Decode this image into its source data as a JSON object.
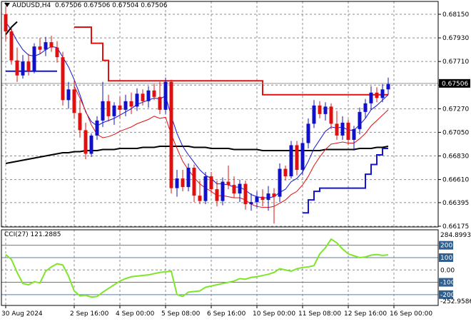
{
  "header": {
    "symbol": "AUDUSD,H4",
    "quote": "0.67506 0.67506 0.67504 0.67506"
  },
  "cci_header": {
    "label": "CCI(27) 121.2885"
  },
  "colors": {
    "bull": "#1010c8",
    "bear": "#e01010",
    "red_line": "#e01010",
    "blue_line": "#1414d8",
    "black_ma": "#000000",
    "cci": "#7fe52a",
    "grid": "#8c8c8c",
    "current_label_bg": "#000000"
  },
  "chart_data": [
    {
      "type": "candlestick",
      "name": "price",
      "y_ticks": [
        "0.68150",
        "0.67930",
        "0.67710",
        "0.67490",
        "0.67270",
        "0.67050",
        "0.66830",
        "0.66610",
        "0.66395",
        "0.66175"
      ],
      "ylim": [
        0.66175,
        0.6823
      ],
      "current_price": "0.67506",
      "x_ticks": [
        {
          "label": "30 Aug 2024",
          "index": 0
        },
        {
          "label": "2 Sep 16:00",
          "index": 12
        },
        {
          "label": "4 Sep 00:00",
          "index": 20
        },
        {
          "label": "5 Sep 08:00",
          "index": 28
        },
        {
          "label": "6 Sep 16:00",
          "index": 36
        },
        {
          "label": "10 Sep 00:00",
          "index": 44
        },
        {
          "label": "11 Sep 08:00",
          "index": 52
        },
        {
          "label": "12 Sep 16:00",
          "index": 60
        },
        {
          "label": "16 Sep 00:00",
          "index": 68
        }
      ],
      "candles": [
        {
          "o": 0.6815,
          "h": 0.6822,
          "l": 0.679,
          "c": 0.6799
        },
        {
          "o": 0.6799,
          "h": 0.6802,
          "l": 0.6768,
          "c": 0.6772
        },
        {
          "o": 0.6772,
          "h": 0.6784,
          "l": 0.6752,
          "c": 0.6758
        },
        {
          "o": 0.6758,
          "h": 0.6777,
          "l": 0.6755,
          "c": 0.6771
        },
        {
          "o": 0.6771,
          "h": 0.6778,
          "l": 0.6758,
          "c": 0.6762
        },
        {
          "o": 0.6762,
          "h": 0.6788,
          "l": 0.676,
          "c": 0.6785
        },
        {
          "o": 0.6785,
          "h": 0.6793,
          "l": 0.6778,
          "c": 0.6782
        },
        {
          "o": 0.6782,
          "h": 0.6794,
          "l": 0.6776,
          "c": 0.6789
        },
        {
          "o": 0.6789,
          "h": 0.6795,
          "l": 0.678,
          "c": 0.6784
        },
        {
          "o": 0.6784,
          "h": 0.679,
          "l": 0.677,
          "c": 0.6775
        },
        {
          "o": 0.6775,
          "h": 0.678,
          "l": 0.673,
          "c": 0.6735
        },
        {
          "o": 0.6735,
          "h": 0.6752,
          "l": 0.6727,
          "c": 0.6745
        },
        {
          "o": 0.6745,
          "h": 0.6754,
          "l": 0.6718,
          "c": 0.6723
        },
        {
          "o": 0.6723,
          "h": 0.6735,
          "l": 0.67,
          "c": 0.6707
        },
        {
          "o": 0.6707,
          "h": 0.6714,
          "l": 0.668,
          "c": 0.6685
        },
        {
          "o": 0.6685,
          "h": 0.6704,
          "l": 0.6682,
          "c": 0.6702
        },
        {
          "o": 0.6702,
          "h": 0.672,
          "l": 0.6698,
          "c": 0.6716
        },
        {
          "o": 0.6716,
          "h": 0.6752,
          "l": 0.671,
          "c": 0.6734
        },
        {
          "o": 0.6734,
          "h": 0.674,
          "l": 0.6715,
          "c": 0.672
        },
        {
          "o": 0.672,
          "h": 0.6733,
          "l": 0.6712,
          "c": 0.673
        },
        {
          "o": 0.673,
          "h": 0.6738,
          "l": 0.6718,
          "c": 0.6726
        },
        {
          "o": 0.6726,
          "h": 0.674,
          "l": 0.672,
          "c": 0.6734
        },
        {
          "o": 0.6734,
          "h": 0.6742,
          "l": 0.6722,
          "c": 0.6729
        },
        {
          "o": 0.6729,
          "h": 0.6746,
          "l": 0.6725,
          "c": 0.6741
        },
        {
          "o": 0.6741,
          "h": 0.6745,
          "l": 0.673,
          "c": 0.6734
        },
        {
          "o": 0.6734,
          "h": 0.6748,
          "l": 0.6728,
          "c": 0.6744
        },
        {
          "o": 0.6744,
          "h": 0.675,
          "l": 0.6735,
          "c": 0.6738
        },
        {
          "o": 0.6738,
          "h": 0.6752,
          "l": 0.6722,
          "c": 0.6726
        },
        {
          "o": 0.6726,
          "h": 0.6756,
          "l": 0.6722,
          "c": 0.6752
        },
        {
          "o": 0.6752,
          "h": 0.6754,
          "l": 0.6648,
          "c": 0.6653
        },
        {
          "o": 0.6653,
          "h": 0.667,
          "l": 0.6645,
          "c": 0.6662
        },
        {
          "o": 0.6662,
          "h": 0.667,
          "l": 0.665,
          "c": 0.6654
        },
        {
          "o": 0.6654,
          "h": 0.6676,
          "l": 0.665,
          "c": 0.6672
        },
        {
          "o": 0.6672,
          "h": 0.6675,
          "l": 0.664,
          "c": 0.6646
        },
        {
          "o": 0.6646,
          "h": 0.666,
          "l": 0.6638,
          "c": 0.6641
        },
        {
          "o": 0.6641,
          "h": 0.6668,
          "l": 0.6638,
          "c": 0.6664
        },
        {
          "o": 0.6664,
          "h": 0.6668,
          "l": 0.6648,
          "c": 0.6652
        },
        {
          "o": 0.6652,
          "h": 0.666,
          "l": 0.6636,
          "c": 0.6641
        },
        {
          "o": 0.6641,
          "h": 0.6663,
          "l": 0.6637,
          "c": 0.6659
        },
        {
          "o": 0.6659,
          "h": 0.6674,
          "l": 0.6652,
          "c": 0.6656
        },
        {
          "o": 0.6656,
          "h": 0.6664,
          "l": 0.6644,
          "c": 0.6648
        },
        {
          "o": 0.6648,
          "h": 0.6661,
          "l": 0.664,
          "c": 0.6657
        },
        {
          "o": 0.6657,
          "h": 0.666,
          "l": 0.6633,
          "c": 0.6638
        },
        {
          "o": 0.6638,
          "h": 0.6648,
          "l": 0.6632,
          "c": 0.664
        },
        {
          "o": 0.664,
          "h": 0.665,
          "l": 0.6635,
          "c": 0.6645
        },
        {
          "o": 0.6645,
          "h": 0.6652,
          "l": 0.6636,
          "c": 0.6642
        },
        {
          "o": 0.6642,
          "h": 0.6655,
          "l": 0.6632,
          "c": 0.6648
        },
        {
          "o": 0.6648,
          "h": 0.6653,
          "l": 0.662,
          "c": 0.6645
        },
        {
          "o": 0.6645,
          "h": 0.6676,
          "l": 0.664,
          "c": 0.6671
        },
        {
          "o": 0.6671,
          "h": 0.6674,
          "l": 0.666,
          "c": 0.6664
        },
        {
          "o": 0.6664,
          "h": 0.6697,
          "l": 0.6662,
          "c": 0.6693
        },
        {
          "o": 0.6693,
          "h": 0.6697,
          "l": 0.6665,
          "c": 0.667
        },
        {
          "o": 0.667,
          "h": 0.67,
          "l": 0.6665,
          "c": 0.6695
        },
        {
          "o": 0.6695,
          "h": 0.6718,
          "l": 0.669,
          "c": 0.6713
        },
        {
          "o": 0.6713,
          "h": 0.6735,
          "l": 0.6709,
          "c": 0.673
        },
        {
          "o": 0.673,
          "h": 0.6734,
          "l": 0.6718,
          "c": 0.6722
        },
        {
          "o": 0.6722,
          "h": 0.6733,
          "l": 0.6716,
          "c": 0.6729
        },
        {
          "o": 0.6729,
          "h": 0.6732,
          "l": 0.6708,
          "c": 0.6713
        },
        {
          "o": 0.6713,
          "h": 0.6725,
          "l": 0.6698,
          "c": 0.6702
        },
        {
          "o": 0.6702,
          "h": 0.672,
          "l": 0.6698,
          "c": 0.6714
        },
        {
          "o": 0.6714,
          "h": 0.6717,
          "l": 0.6693,
          "c": 0.6698
        },
        {
          "o": 0.6698,
          "h": 0.6711,
          "l": 0.6688,
          "c": 0.6708
        },
        {
          "o": 0.6708,
          "h": 0.6728,
          "l": 0.6703,
          "c": 0.6724
        },
        {
          "o": 0.6724,
          "h": 0.6736,
          "l": 0.6718,
          "c": 0.6732
        },
        {
          "o": 0.6732,
          "h": 0.6748,
          "l": 0.6726,
          "c": 0.6742
        },
        {
          "o": 0.6742,
          "h": 0.6747,
          "l": 0.6733,
          "c": 0.6737
        },
        {
          "o": 0.6737,
          "h": 0.675,
          "l": 0.6733,
          "c": 0.6745
        },
        {
          "o": 0.6745,
          "h": 0.6756,
          "l": 0.674,
          "c": 0.675
        }
      ],
      "series": [
        {
          "kind": "red_step",
          "values": [
            null,
            null,
            null,
            null,
            null,
            null,
            null,
            null,
            null,
            null,
            null,
            null,
            0.6803,
            0.6803,
            0.6803,
            0.6788,
            0.6788,
            0.6772,
            0.6753,
            0.6753,
            0.6753,
            0.6753,
            0.6753,
            0.6753,
            0.6753,
            0.6753,
            0.6753,
            0.6753,
            0.6753,
            0.6753,
            0.6753,
            0.6753,
            0.6753,
            0.6753,
            0.6753,
            0.6753,
            0.6753,
            0.6753,
            0.6753,
            0.6753,
            0.6753,
            0.6753,
            0.6753,
            0.6753,
            0.6753,
            0.674,
            0.674,
            0.674,
            0.674,
            0.674,
            0.674,
            0.674,
            0.674,
            0.674,
            0.674,
            0.674,
            0.674,
            0.674,
            0.674,
            0.674,
            0.674,
            0.674,
            0.674,
            0.674,
            0.674,
            0.674,
            0.674,
            0.674
          ]
        },
        {
          "kind": "black_ma",
          "values": [
            0.6676,
            0.6677,
            0.6678,
            0.6679,
            0.668,
            0.6681,
            0.6682,
            0.6683,
            0.6684,
            0.6685,
            0.6686,
            0.6686,
            0.6687,
            0.6687,
            0.6688,
            0.6688,
            0.6688,
            0.6689,
            0.6689,
            0.6689,
            0.669,
            0.669,
            0.669,
            0.669,
            0.6691,
            0.6691,
            0.6691,
            0.6692,
            0.6692,
            0.6692,
            0.6692,
            0.6692,
            0.6692,
            0.6691,
            0.6691,
            0.6691,
            0.669,
            0.669,
            0.669,
            0.669,
            0.6689,
            0.6689,
            0.6689,
            0.6689,
            0.6689,
            0.6688,
            0.6688,
            0.6688,
            0.6688,
            0.6688,
            0.6688,
            0.6688,
            0.6688,
            0.6688,
            0.6688,
            0.6688,
            0.6689,
            0.6689,
            0.6689,
            0.6689,
            0.6689,
            0.6689,
            0.669,
            0.669,
            0.669,
            0.6691,
            0.6691,
            0.6692
          ]
        },
        {
          "kind": "blue_fast",
          "values": [
            0.6808,
            0.68,
            0.679,
            0.6782,
            0.6777,
            0.6776,
            0.6778,
            0.6782,
            0.6785,
            0.6784,
            0.6775,
            0.6766,
            0.6754,
            0.674,
            0.6724,
            0.6715,
            0.6711,
            0.6714,
            0.6716,
            0.6718,
            0.6721,
            0.6724,
            0.6727,
            0.6731,
            0.6733,
            0.6735,
            0.6737,
            0.6736,
            0.6739,
            0.672,
            0.6704,
            0.6692,
            0.6684,
            0.6677,
            0.667,
            0.6665,
            0.6662,
            0.6657,
            0.6657,
            0.6656,
            0.6654,
            0.6654,
            0.6651,
            0.6647,
            0.6645,
            0.6644,
            0.6644,
            0.6645,
            0.6649,
            0.6652,
            0.6659,
            0.6662,
            0.6668,
            0.6678,
            0.669,
            0.6698,
            0.6706,
            0.671,
            0.6709,
            0.671,
            0.6707,
            0.6707,
            0.6712,
            0.6718,
            0.6726,
            0.673,
            0.6735,
            0.674
          ]
        },
        {
          "kind": "red_env",
          "values": [
            null,
            null,
            null,
            null,
            null,
            null,
            null,
            null,
            null,
            null,
            null,
            null,
            0.6748,
            0.6737,
            0.6725,
            0.6712,
            0.6703,
            0.67,
            0.6701,
            0.6703,
            0.6706,
            0.6708,
            0.671,
            0.6713,
            0.6715,
            0.6717,
            0.672,
            0.6718,
            0.6719,
            0.6703,
            0.669,
            0.6678,
            0.667,
            0.6663,
            0.6657,
            0.6653,
            0.665,
            0.6646,
            0.6646,
            0.6645,
            0.6644,
            0.6644,
            0.6642,
            0.6638,
            0.6636,
            0.6635,
            0.6635,
            0.6636,
            0.6639,
            0.6642,
            0.6647,
            0.665,
            0.6656,
            0.6664,
            0.6674,
            0.6682,
            0.6689,
            0.6694,
            0.6695,
            0.6696,
            0.6695,
            0.6695,
            0.6699,
            0.6704,
            0.6711,
            0.6716,
            0.6721,
            0.6726
          ]
        },
        {
          "kind": "blue_support",
          "values": [
            0.6762,
            0.6762,
            0.6762,
            0.6762,
            0.6762,
            0.6762,
            0.6762,
            0.6762,
            0.6762,
            0.6762,
            null,
            null,
            null,
            null,
            null,
            null,
            null,
            null,
            null,
            null,
            null,
            null,
            null,
            null,
            null,
            null,
            null,
            null,
            null,
            null,
            null,
            null,
            null,
            null,
            null,
            null,
            null,
            null,
            null,
            null,
            null,
            null,
            null,
            null,
            null,
            null,
            null,
            null,
            null,
            null,
            null,
            null,
            0.663,
            0.6642,
            0.665,
            0.6653,
            0.6653,
            0.6653,
            0.6653,
            0.6653,
            0.6653,
            0.6653,
            0.6653,
            0.6666,
            0.6675,
            0.6684,
            0.669,
            0.669
          ]
        },
        {
          "kind": "black_trend",
          "values": [
            0.6796,
            0.6803,
            0.6808,
            null,
            null,
            null,
            null,
            null,
            null,
            null,
            null,
            null,
            null,
            null,
            null,
            null,
            null,
            null,
            null,
            null,
            null,
            null,
            null,
            null,
            null,
            null,
            null,
            null,
            null,
            null,
            null,
            null,
            null,
            null,
            null,
            null,
            null,
            null,
            null,
            null,
            null,
            null,
            null,
            null,
            null,
            null,
            null,
            null,
            null,
            null,
            null,
            null,
            null,
            null,
            null,
            null,
            null,
            null,
            null,
            null,
            null,
            null,
            null,
            null,
            null,
            null,
            null,
            null
          ]
        }
      ]
    },
    {
      "type": "line",
      "name": "cci",
      "y_ticks": [
        "284.8993",
        "200",
        "100",
        "0.00",
        "-100",
        "-200",
        "-252.9586"
      ],
      "ylim": [
        -252.9586,
        284.8993
      ],
      "levels": [
        200,
        100,
        0,
        -100,
        -200
      ],
      "current_value": "121.2885",
      "values": [
        125,
        85,
        -20,
        -110,
        -120,
        -95,
        -105,
        -10,
        25,
        50,
        40,
        -50,
        -170,
        -210,
        -205,
        -220,
        -215,
        -180,
        -150,
        -120,
        -90,
        -70,
        -55,
        -50,
        -45,
        -40,
        -30,
        -20,
        -15,
        -10,
        -200,
        -215,
        -180,
        -175,
        -170,
        -140,
        -130,
        -120,
        -110,
        -100,
        -90,
        -70,
        -75,
        -60,
        -55,
        -45,
        -35,
        -20,
        10,
        0,
        -10,
        10,
        20,
        25,
        35,
        130,
        180,
        250,
        220,
        170,
        130,
        115,
        100,
        105,
        120,
        125,
        118,
        122
      ]
    }
  ]
}
